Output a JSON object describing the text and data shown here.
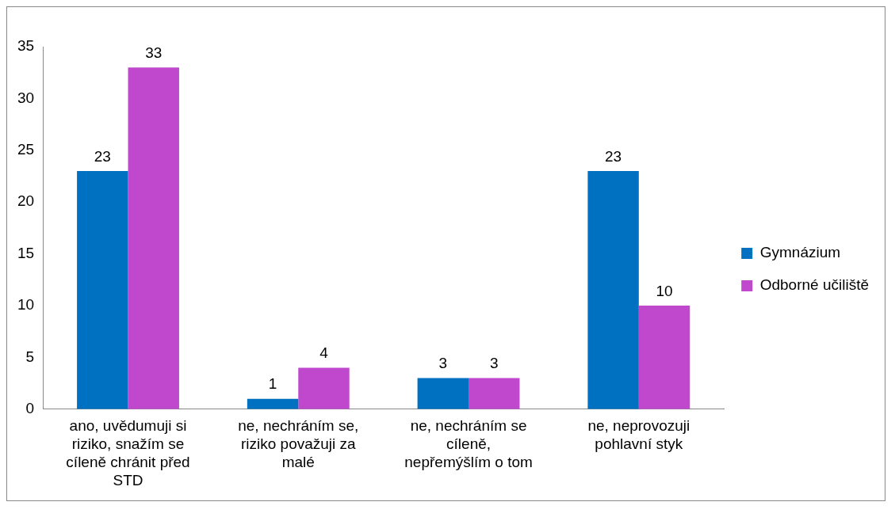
{
  "chart_data": {
    "type": "bar",
    "categories": [
      "ano, uvědumuji si riziko, snažím se cíleně chránit před STD",
      "ne, nechráním se, riziko považuji za malé",
      "ne, nechráním se cíleně, nepřemýšlím o tom",
      "ne, neprovozuji pohlavní styk"
    ],
    "series": [
      {
        "name": "Gymnázium",
        "color": "#0070c0",
        "values": [
          23,
          1,
          3,
          23
        ]
      },
      {
        "name": "Odborné učiliště",
        "color": "#bf48cc",
        "values": [
          33,
          4,
          3,
          10
        ]
      }
    ],
    "ylim": [
      0,
      35
    ],
    "yticks": [
      0,
      5,
      10,
      15,
      20,
      25,
      30,
      35
    ],
    "grid": false,
    "legend": "right",
    "data_labels": true
  }
}
